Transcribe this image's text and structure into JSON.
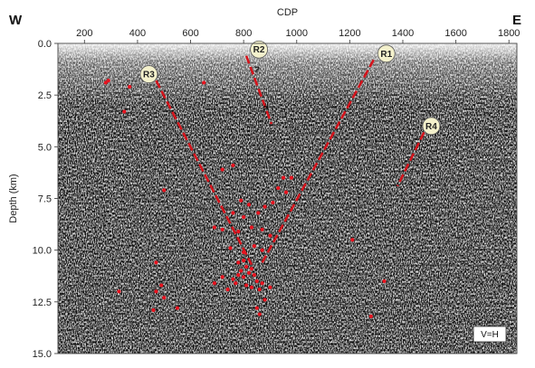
{
  "chart_data": {
    "type": "scatter",
    "title": "",
    "xlabel": "CDP",
    "ylabel": "Depth (km)",
    "xlim": [
      100,
      1830
    ],
    "ylim": [
      15.0,
      0.0
    ],
    "x_ticks": [
      "200",
      "400",
      "600",
      "800",
      "1000",
      "1200",
      "1400",
      "1600",
      "1800"
    ],
    "y_ticks": [
      "0.0",
      "2.5",
      "5.0",
      "7.5",
      "10.0",
      "12.5",
      "15.0"
    ],
    "x_axis_position": "top",
    "direction_left": "W",
    "direction_right": "E",
    "scale_note": "V=H",
    "background": "seismic reflection section (grey wiggle traces)",
    "reflectors": [
      {
        "label": "R3",
        "color": "#d4141c",
        "dashed": true,
        "points": [
          [
            470,
            1.8
          ],
          [
            830,
            10.7
          ]
        ]
      },
      {
        "label": "R2",
        "color": "#d4141c",
        "dashed": true,
        "points": [
          [
            810,
            0.6
          ],
          [
            905,
            3.9
          ]
        ],
        "question_marks": [
          [
            850,
            1.3
          ],
          [
            880,
            3.2
          ]
        ]
      },
      {
        "label": "R1",
        "color": "#d4141c",
        "dashed": true,
        "points": [
          [
            1290,
            0.8
          ],
          [
            870,
            10.6
          ]
        ]
      },
      {
        "label": "R4",
        "color": "#d4141c",
        "dashed": true,
        "points": [
          [
            1480,
            4.3
          ],
          [
            1380,
            6.9
          ]
        ]
      }
    ],
    "series": [
      {
        "name": "",
        "color": "#e8131f",
        "points": [
          [
            290,
            1.8
          ],
          [
            370,
            2.1
          ],
          [
            350,
            3.3
          ],
          [
            280,
            1.9
          ],
          [
            650,
            1.9
          ],
          [
            720,
            6.1
          ],
          [
            760,
            5.9
          ],
          [
            500,
            7.1
          ],
          [
            790,
            7.6
          ],
          [
            820,
            7.8
          ],
          [
            760,
            8.2
          ],
          [
            800,
            8.4
          ],
          [
            855,
            8.2
          ],
          [
            880,
            7.9
          ],
          [
            910,
            7.7
          ],
          [
            930,
            7.0
          ],
          [
            960,
            7.2
          ],
          [
            950,
            6.5
          ],
          [
            980,
            6.5
          ],
          [
            690,
            8.9
          ],
          [
            720,
            9.0
          ],
          [
            780,
            9.1
          ],
          [
            830,
            8.9
          ],
          [
            870,
            9.0
          ],
          [
            900,
            9.3
          ],
          [
            840,
            9.8
          ],
          [
            870,
            10.0
          ],
          [
            750,
            9.9
          ],
          [
            800,
            10.1
          ],
          [
            780,
            10.6
          ],
          [
            800,
            10.5
          ],
          [
            810,
            10.8
          ],
          [
            790,
            11.0
          ],
          [
            820,
            11.1
          ],
          [
            830,
            10.9
          ],
          [
            780,
            11.2
          ],
          [
            800,
            11.3
          ],
          [
            760,
            11.4
          ],
          [
            840,
            11.2
          ],
          [
            850,
            11.5
          ],
          [
            870,
            11.6
          ],
          [
            770,
            11.6
          ],
          [
            810,
            11.7
          ],
          [
            830,
            11.8
          ],
          [
            860,
            11.9
          ],
          [
            720,
            11.3
          ],
          [
            690,
            11.6
          ],
          [
            740,
            11.9
          ],
          [
            900,
            11.8
          ],
          [
            880,
            12.4
          ],
          [
            850,
            12.8
          ],
          [
            860,
            13.1
          ],
          [
            470,
            10.6
          ],
          [
            490,
            11.7
          ],
          [
            470,
            12.0
          ],
          [
            500,
            12.3
          ],
          [
            550,
            12.8
          ],
          [
            460,
            12.9
          ],
          [
            330,
            12.0
          ],
          [
            1210,
            9.5
          ],
          [
            1330,
            11.5
          ],
          [
            1280,
            13.2
          ]
        ]
      }
    ],
    "grid": false,
    "legend": "none"
  }
}
